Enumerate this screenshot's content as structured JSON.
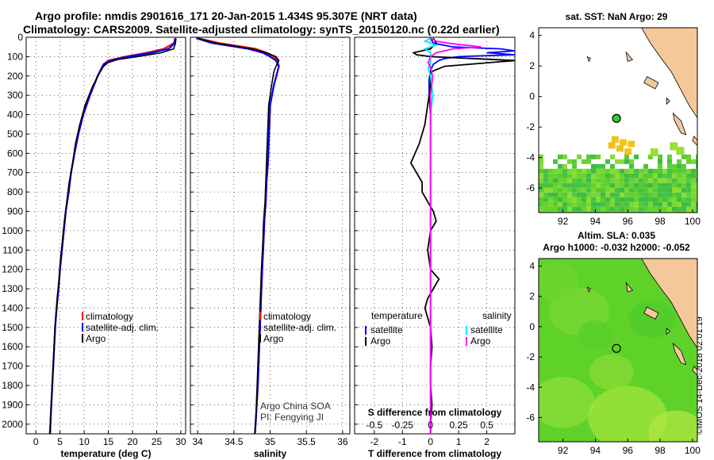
{
  "header": {
    "line1": "Argo profile: nmdis 2901616_171 20-Jan-2015 1.434S 95.307E (NRT data)",
    "line2": "Climatology: CARS2009. Satellite-adjusted climatology: synTS_20150120.nc (0.22d earlier)"
  },
  "colors": {
    "climatology": "#ff0000",
    "satellite": "#0000ff",
    "argo": "#000000",
    "sal_satellite": "#00e5ff",
    "sal_argo": "#ff00ff",
    "land": "#f5c89a",
    "sst_green": "#33cc33",
    "sla_green": "#66dd22"
  },
  "chart_data": [
    {
      "type": "line",
      "id": "temperature",
      "xlabel": "temperature (deg C)",
      "ylabel": "",
      "xlim": [
        -2,
        31
      ],
      "ylim": [
        0,
        2050
      ],
      "x_ticks": [
        0,
        5,
        10,
        15,
        20,
        25,
        30
      ],
      "y_ticks": [
        0,
        100,
        200,
        300,
        400,
        500,
        600,
        700,
        800,
        900,
        1000,
        1100,
        1200,
        1300,
        1400,
        1500,
        1600,
        1700,
        1800,
        1900,
        2000
      ],
      "grid": true,
      "legend_position": "lower-center",
      "legend": [
        "climatology",
        "satellite-adj. clim.",
        "Argo"
      ],
      "series": [
        {
          "name": "climatology",
          "color_key": "climatology",
          "depth": [
            5,
            30,
            60,
            80,
            100,
            120,
            140,
            160,
            200,
            300,
            400,
            500,
            600,
            700,
            800,
            900,
            1000,
            1100,
            1200,
            1300,
            1400,
            1500,
            1600,
            1700,
            1800,
            1900,
            2000,
            2050
          ],
          "values": [
            28.8,
            28.6,
            26.5,
            23,
            18.5,
            15,
            14,
            13.6,
            12.8,
            11.2,
            9.8,
            8.8,
            8.0,
            7.3,
            6.8,
            6.2,
            5.8,
            5.4,
            5.0,
            4.7,
            4.3,
            4.0,
            3.8,
            3.6,
            3.4,
            3.2,
            3.0,
            2.9
          ]
        },
        {
          "name": "satellite-adj. clim.",
          "color_key": "satellite",
          "depth": [
            5,
            30,
            60,
            80,
            100,
            120,
            140,
            160,
            200,
            300,
            400,
            500,
            600,
            700,
            800,
            900,
            1000,
            1100,
            1200,
            1300,
            1400,
            1500,
            1600,
            1700,
            1800,
            1900,
            2000,
            2050
          ],
          "values": [
            28.9,
            28.7,
            27.5,
            24,
            19,
            15.5,
            14,
            13.6,
            12.8,
            11.2,
            9.8,
            8.8,
            8.0,
            7.3,
            6.8,
            6.2,
            5.8,
            5.4,
            5.0,
            4.7,
            4.3,
            4.0,
            3.8,
            3.6,
            3.4,
            3.2,
            3.0,
            2.9
          ]
        },
        {
          "name": "Argo",
          "color_key": "argo",
          "depth": [
            5,
            30,
            60,
            80,
            100,
            115,
            130,
            150,
            180,
            250,
            350,
            450,
            550,
            650,
            750,
            850,
            950,
            1050,
            1150,
            1250,
            1350,
            1450,
            1550,
            1650,
            1750,
            1850,
            1950,
            2050
          ],
          "values": [
            29.0,
            28.9,
            28.5,
            26,
            21,
            17,
            15,
            14,
            13.3,
            11.8,
            10.2,
            9.1,
            8.2,
            7.6,
            6.9,
            6.4,
            5.9,
            5.5,
            5.1,
            4.8,
            4.4,
            4.1,
            3.9,
            3.7,
            3.5,
            3.3,
            3.1,
            3.0
          ]
        }
      ]
    },
    {
      "type": "line",
      "id": "salinity",
      "xlabel": "salinity",
      "xlim": [
        33.9,
        36.1
      ],
      "ylim": [
        0,
        2050
      ],
      "x_ticks": [
        34,
        34.5,
        35,
        35.5,
        36
      ],
      "grid": true,
      "legend_position": "lower-center",
      "legend": [
        "climatology",
        "satellite-adj. clim.",
        "Argo"
      ],
      "annotation": [
        "Argo China SOA",
        "PI: Fengying JI"
      ],
      "series": [
        {
          "name": "climatology",
          "color_key": "climatology",
          "depth": [
            5,
            30,
            60,
            80,
            100,
            120,
            150,
            180,
            250,
            350,
            450,
            550,
            650,
            750,
            850,
            950,
            1050,
            1200,
            1400,
            1600,
            1800,
            2000,
            2050
          ],
          "values": [
            34.0,
            34.3,
            34.8,
            34.95,
            35.05,
            35.1,
            35.12,
            35.1,
            35.05,
            35.0,
            34.99,
            34.98,
            34.97,
            34.95,
            34.94,
            34.92,
            34.91,
            34.89,
            34.87,
            34.85,
            34.83,
            34.8,
            34.79
          ]
        },
        {
          "name": "satellite-adj. clim.",
          "color_key": "satellite",
          "depth": [
            5,
            30,
            60,
            80,
            100,
            120,
            150,
            180,
            250,
            350,
            450,
            550,
            650,
            750,
            850,
            950,
            1050,
            1200,
            1400,
            1600,
            1800,
            2000,
            2050
          ],
          "values": [
            33.98,
            34.2,
            34.7,
            34.9,
            35.0,
            35.08,
            35.12,
            35.1,
            35.05,
            35.0,
            34.99,
            34.98,
            34.97,
            34.95,
            34.94,
            34.92,
            34.91,
            34.89,
            34.87,
            34.85,
            34.83,
            34.8,
            34.79
          ]
        },
        {
          "name": "Argo",
          "color_key": "argo",
          "depth": [
            5,
            30,
            60,
            80,
            100,
            120,
            150,
            180,
            250,
            350,
            450,
            550,
            650,
            750,
            850,
            950,
            1050,
            1200,
            1400,
            1600,
            1800,
            2000,
            2050
          ],
          "values": [
            34.0,
            34.25,
            34.75,
            34.95,
            35.08,
            35.12,
            35.08,
            35.05,
            35.02,
            34.98,
            34.97,
            34.96,
            34.95,
            34.94,
            34.93,
            34.91,
            34.9,
            34.88,
            34.86,
            34.84,
            34.82,
            34.8,
            34.79
          ]
        }
      ]
    },
    {
      "type": "line",
      "id": "difference",
      "xlabel": "T difference from climatology",
      "title_inner": "S difference from climatology",
      "xlim": [
        -2.7,
        3.0
      ],
      "ylim": [
        0,
        2050
      ],
      "x_ticks": [
        -2,
        -1,
        0,
        1,
        2
      ],
      "s_ticks": [
        "-0.5",
        "-0.25",
        "0",
        "0.25",
        "0.5"
      ],
      "grid": true,
      "legend_position": "lower",
      "legend_temperature": {
        "heading": "temperature",
        "items": [
          "satellite",
          "Argo"
        ]
      },
      "legend_salinity": {
        "heading": "salinity",
        "items": [
          "satellite",
          "Argo"
        ]
      },
      "series": [
        {
          "name": "T satellite",
          "color_key": "satellite",
          "depth": [
            5,
            30,
            50,
            60,
            70,
            80,
            90,
            100,
            110,
            120,
            140,
            170,
            220,
            300,
            400,
            500,
            700,
            1000,
            1500,
            2000,
            2050
          ],
          "values": [
            0.0,
            0.1,
            0.8,
            2.5,
            3.0,
            2.0,
            3.0,
            1.0,
            0.5,
            0.3,
            0.1,
            0.0,
            -0.05,
            -0.05,
            0.0,
            0.0,
            0.0,
            0.0,
            0.0,
            0.0,
            0.0
          ]
        },
        {
          "name": "T Argo",
          "color_key": "argo",
          "depth": [
            5,
            30,
            60,
            80,
            90,
            100,
            110,
            120,
            150,
            180,
            250,
            350,
            450,
            550,
            650,
            700,
            750,
            800,
            850,
            900,
            950,
            1000,
            1100,
            1200,
            1250,
            1300,
            1350,
            1400,
            1500,
            1600,
            1700,
            1800,
            1900,
            2000,
            2050
          ],
          "values": [
            0.1,
            0.2,
            0.0,
            -0.6,
            -0.5,
            0.0,
            1.5,
            3.0,
            0.5,
            0.0,
            0.0,
            -0.1,
            -0.2,
            -0.4,
            -0.7,
            -0.5,
            -0.3,
            -0.3,
            -0.1,
            0.1,
            0.2,
            0.0,
            -0.1,
            0.0,
            0.3,
            0.1,
            -0.1,
            -0.2,
            0.0,
            0.05,
            0.0,
            0.0,
            0.05,
            0.0,
            0.0
          ]
        },
        {
          "name": "S satellite",
          "color_key": "sal_satellite",
          "depth": [
            5,
            20,
            40,
            60,
            80,
            100,
            130,
            160,
            200,
            300,
            400,
            600,
            800,
            1000,
            1300,
            1600,
            2000,
            2050
          ],
          "values": [
            0.0,
            -0.05,
            0.05,
            -0.05,
            0.0,
            0.0,
            0.0,
            -0.02,
            0.0,
            0.02,
            0.0,
            0.0,
            0.0,
            0.0,
            0.0,
            0.0,
            0.0,
            0.0
          ]
        },
        {
          "name": "S Argo",
          "color_key": "sal_argo",
          "depth": [
            5,
            20,
            30,
            40,
            50,
            60,
            80,
            100,
            130,
            160,
            200,
            300,
            500,
            800,
            1000,
            1300,
            1600,
            2000,
            2050
          ],
          "values": [
            0.0,
            0.05,
            0.15,
            0.3,
            0.45,
            0.2,
            0.05,
            0.0,
            -0.02,
            0.0,
            0.02,
            0.0,
            0.0,
            0.0,
            0.0,
            0.0,
            0.0,
            0.0,
            0.0
          ]
        }
      ]
    },
    {
      "type": "heatmap",
      "id": "sst-map",
      "title": "sat. SST: NaN Argo: 29",
      "x_ticks": [
        "92",
        "94",
        "96",
        "98",
        "100"
      ],
      "y_ticks": [
        "4",
        "2",
        "0",
        "-2",
        "-4",
        "-6"
      ],
      "xlim": [
        90.5,
        100.3
      ],
      "ylim": [
        -7.6,
        4.5
      ],
      "argo_position": {
        "lon": 95.307,
        "lat": -1.434
      }
    },
    {
      "type": "heatmap",
      "id": "sla-map",
      "title": "Altim. SLA: 0.035",
      "subtitle": "Argo h1000: -0.032 h2000: -0.052",
      "x_ticks": [
        "92",
        "94",
        "96",
        "98",
        "100"
      ],
      "y_ticks": [
        "4",
        "2",
        "0",
        "-2",
        "-4",
        "-6"
      ],
      "xlim": [
        90.5,
        100.3
      ],
      "ylim": [
        -7.6,
        4.5
      ],
      "argo_position": {
        "lon": 95.307,
        "lat": -1.434
      }
    }
  ],
  "credit": "©IMOS 14-Dec-2018 02:01:19"
}
